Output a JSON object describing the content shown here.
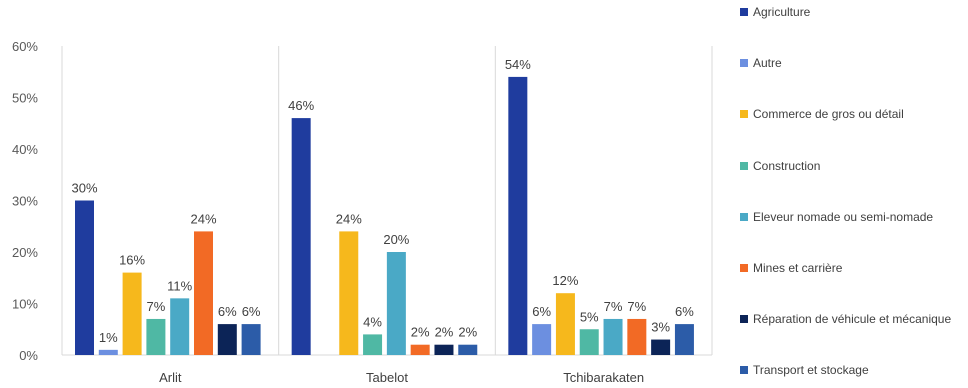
{
  "chart_data": {
    "type": "bar",
    "categories": [
      "Arlit",
      "Tabelot",
      "Tchibarakaten"
    ],
    "series": [
      {
        "name": "Agriculture",
        "values": [
          30,
          46,
          54
        ],
        "labels": [
          "30%",
          "46%",
          "54%"
        ],
        "color": "#1f3c9e"
      },
      {
        "name": "Autre",
        "values": [
          1,
          0,
          6
        ],
        "labels": [
          "1%",
          "",
          "6%"
        ],
        "color": "#6c8fe0"
      },
      {
        "name": "Commerce de gros ou détail",
        "values": [
          16,
          24,
          12
        ],
        "labels": [
          "16%",
          "24%",
          "12%"
        ],
        "color": "#f6b81c"
      },
      {
        "name": "Construction",
        "values": [
          7,
          4,
          5
        ],
        "labels": [
          "7%",
          "4%",
          "5%"
        ],
        "color": "#4fb8a4"
      },
      {
        "name": "Eleveur nomade ou semi-nomade",
        "values": [
          11,
          20,
          7
        ],
        "labels": [
          "11%",
          "20%",
          "7%"
        ],
        "color": "#4aa9c6"
      },
      {
        "name": "Mines et carrière",
        "values": [
          24,
          2,
          7
        ],
        "labels": [
          "24%",
          "2%",
          "7%"
        ],
        "color": "#f26a25"
      },
      {
        "name": "Réparation de véhicule et mécanique",
        "values": [
          6,
          2,
          3
        ],
        "labels": [
          "6%",
          "2%",
          "3%"
        ],
        "color": "#0c2457"
      },
      {
        "name": "Transport et stockage",
        "values": [
          6,
          2,
          6
        ],
        "labels": [
          "6%",
          "2%",
          "6%"
        ],
        "color": "#2c5ca8"
      }
    ],
    "yticks": [
      "0%",
      "10%",
      "20%",
      "30%",
      "40%",
      "50%",
      "60%"
    ],
    "ylim": [
      0,
      60
    ],
    "legend_position": "right",
    "grid": false
  }
}
